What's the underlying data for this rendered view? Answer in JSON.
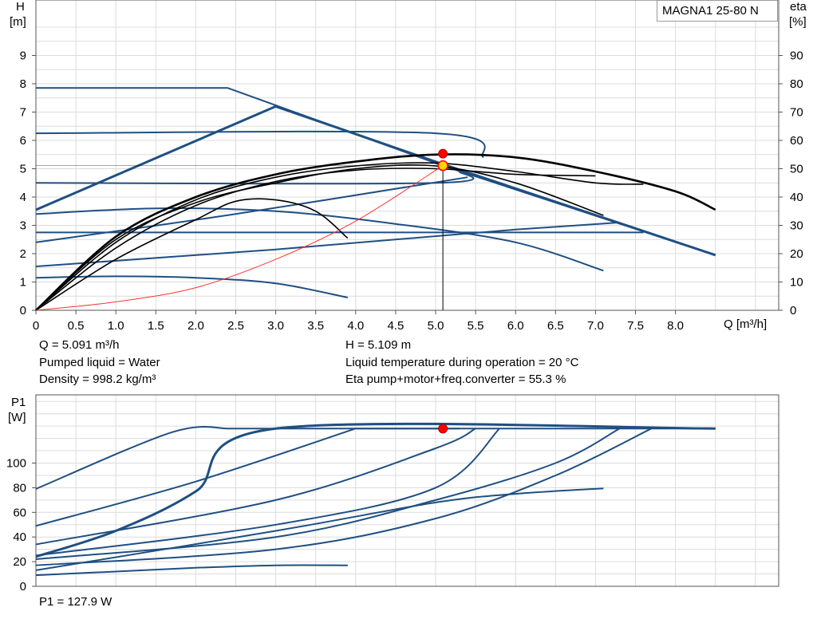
{
  "chart_data": [
    {
      "type": "line",
      "model_label": "MAGNA1 25-80 N",
      "left_axis": {
        "name": "H",
        "unit": "[m]",
        "ylim": [
          0,
          10
        ],
        "ticks": [
          0,
          1,
          2,
          3,
          4,
          5,
          6,
          7,
          8,
          9
        ]
      },
      "right_axis": {
        "name": "eta",
        "unit": "[%]",
        "ylim": [
          0,
          100
        ],
        "ticks": [
          0,
          10,
          20,
          30,
          40,
          50,
          60,
          70,
          80,
          90
        ]
      },
      "x_axis": {
        "label": "Q [m³/h]",
        "xlim": [
          0,
          9.3
        ],
        "ticks": [
          0,
          0.5,
          1.0,
          1.5,
          2.0,
          2.5,
          3.0,
          3.5,
          4.0,
          4.5,
          5.0,
          5.5,
          6.0,
          6.5,
          7.0,
          7.5,
          8.0
        ],
        "tick_labels": [
          "0",
          "0.5",
          "1.0",
          "1.5",
          "2.0",
          "2.5",
          "3.0",
          "3.5",
          "4.0",
          "4.5",
          "5.0",
          "5.5",
          "6.0",
          "6.5",
          "7.0",
          "7.5",
          "8.0"
        ]
      },
      "grid": true,
      "colors": {
        "curve": "#1f4f82",
        "efficiency": "#000000",
        "system": "#ff3333",
        "duty_point": "#ff0000",
        "duty_point_fill": "#ffd400"
      },
      "qh_curves": [
        {
          "points": [
            [
              0,
              7.85
            ],
            [
              2.4,
              7.85
            ],
            [
              5.1,
              5.1
            ],
            [
              8.5,
              1.95
            ]
          ],
          "bold": false
        },
        {
          "points": [
            [
              0,
              3.55
            ],
            [
              3.0,
              7.2
            ],
            [
              5.1,
              5.15
            ],
            [
              8.5,
              1.95
            ]
          ],
          "bold": true
        },
        {
          "points": [
            [
              0,
              6.25
            ],
            [
              5.0,
              6.25
            ],
            [
              5.6,
              5.4
            ]
          ],
          "bold": false
        },
        {
          "points": [
            [
              0,
              4.5
            ],
            [
              5.0,
              4.5
            ],
            [
              5.3,
              4.9
            ]
          ],
          "bold": false
        },
        {
          "points": [
            [
              0,
              2.75
            ],
            [
              7.6,
              2.75
            ]
          ],
          "bold": false
        },
        {
          "points": [
            [
              0,
              3.4
            ],
            [
              1.5,
              3.6
            ],
            [
              3.0,
              3.5
            ],
            [
              4.5,
              3.05
            ],
            [
              6.0,
              2.4
            ],
            [
              7.1,
              1.4
            ]
          ],
          "bold": false
        },
        {
          "points": [
            [
              0,
              2.4
            ],
            [
              2.5,
              3.4
            ],
            [
              5.4,
              4.7
            ]
          ],
          "bold": false
        },
        {
          "points": [
            [
              0,
              1.55
            ],
            [
              3.0,
              2.15
            ],
            [
              6.0,
              2.85
            ],
            [
              7.3,
              3.1
            ]
          ],
          "bold": false
        },
        {
          "points": [
            [
              0,
              1.15
            ],
            [
              1.0,
              1.2
            ],
            [
              2.0,
              1.15
            ],
            [
              3.0,
              0.95
            ],
            [
              3.9,
              0.45
            ]
          ],
          "bold": false
        }
      ],
      "eta_curves": [
        {
          "points": [
            [
              0,
              0
            ],
            [
              1.0,
              26
            ],
            [
              2.0,
              40
            ],
            [
              3.0,
              48
            ],
            [
              4.0,
              52.5
            ],
            [
              5.0,
              55
            ],
            [
              6.0,
              54
            ],
            [
              7.0,
              49
            ],
            [
              8.0,
              42
            ],
            [
              8.5,
              35.5
            ]
          ],
          "bold": true
        },
        {
          "points": [
            [
              0,
              0
            ],
            [
              1.0,
              24
            ],
            [
              2.0,
              39
            ],
            [
              3.0,
              47
            ],
            [
              4.0,
              51
            ],
            [
              5.0,
              52
            ],
            [
              6.0,
              49
            ],
            [
              7.0,
              45
            ],
            [
              7.6,
              44.5
            ]
          ],
          "bold": false
        },
        {
          "points": [
            [
              0,
              0
            ],
            [
              1.0,
              22
            ],
            [
              2.0,
              37
            ],
            [
              3.0,
              45.5
            ],
            [
              4.0,
              49.5
            ],
            [
              5.0,
              50
            ],
            [
              6.0,
              48
            ],
            [
              7.0,
              47.5
            ]
          ],
          "bold": false
        },
        {
          "points": [
            [
              0,
              0
            ],
            [
              1.0,
              25
            ],
            [
              2.0,
              38
            ],
            [
              3.0,
              45
            ],
            [
              4.0,
              50
            ],
            [
              5.0,
              51
            ],
            [
              6.0,
              45
            ],
            [
              7.1,
              33.5
            ]
          ],
          "bold": false
        },
        {
          "points": [
            [
              0,
              0
            ],
            [
              1.0,
              18
            ],
            [
              2.0,
              32
            ],
            [
              2.5,
              38.5
            ],
            [
              3.0,
              39
            ],
            [
              3.5,
              35
            ],
            [
              3.9,
              25.5
            ]
          ],
          "bold": false
        }
      ],
      "system_curve": {
        "points": [
          [
            0,
            0
          ],
          [
            1.0,
            3
          ],
          [
            2.0,
            8
          ],
          [
            3.0,
            18
          ],
          [
            4.0,
            31.5
          ],
          [
            5.091,
            51.09
          ]
        ]
      },
      "duty_point": {
        "Q": 5.091,
        "H": 5.109,
        "eta": 55.3
      }
    },
    {
      "type": "line",
      "left_axis": {
        "name": "P1",
        "unit": "[W]",
        "ylim": [
          0,
          130
        ],
        "ticks": [
          0,
          20,
          40,
          60,
          80,
          100
        ],
        "tick_labels": [
          "0",
          "20",
          "40",
          "60",
          "80",
          "100"
        ]
      },
      "xlim": [
        0,
        9.3
      ],
      "grid": true,
      "p1_curves": [
        {
          "points": [
            [
              0,
              79
            ],
            [
              1.7,
              125
            ],
            [
              2.4,
              128
            ],
            [
              8.5,
              128
            ]
          ],
          "bold": false
        },
        {
          "points": [
            [
              0,
              24
            ],
            [
              1.0,
              45
            ],
            [
              2.0,
              77
            ],
            [
              3.0,
              128
            ],
            [
              8.5,
              128
            ]
          ],
          "bold": true
        },
        {
          "points": [
            [
              0,
              49
            ],
            [
              2.0,
              85
            ],
            [
              4.0,
              128
            ],
            [
              5.3,
              128
            ]
          ],
          "bold": false
        },
        {
          "points": [
            [
              0,
              34
            ],
            [
              3.0,
              70
            ],
            [
              5.0,
              112
            ],
            [
              5.5,
              128
            ]
          ],
          "bold": false
        },
        {
          "points": [
            [
              0,
              25
            ],
            [
              3.0,
              50
            ],
            [
              5.0,
              80
            ],
            [
              5.8,
              128
            ]
          ],
          "bold": false
        },
        {
          "points": [
            [
              0,
              22
            ],
            [
              3.0,
              40
            ],
            [
              5.0,
              70
            ],
            [
              6.5,
              100
            ],
            [
              7.3,
              128
            ]
          ],
          "bold": false
        },
        {
          "points": [
            [
              0,
              17
            ],
            [
              3.0,
              30
            ],
            [
              5.0,
              55
            ],
            [
              6.5,
              90
            ],
            [
              7.7,
              128
            ]
          ],
          "bold": false
        },
        {
          "points": [
            [
              0,
              13
            ],
            [
              3.0,
              45
            ],
            [
              5.0,
              68
            ],
            [
              6.0,
              75
            ],
            [
              7.1,
              79.5
            ]
          ],
          "bold": false
        },
        {
          "points": [
            [
              0,
              9
            ],
            [
              1.0,
              12
            ],
            [
              2.0,
              15
            ],
            [
              3.0,
              17
            ],
            [
              3.9,
              17
            ]
          ],
          "bold": false
        }
      ],
      "duty_point": {
        "Q": 5.091,
        "P1": 127.9
      }
    }
  ],
  "readout": {
    "q": "Q = 5.091 m³/h",
    "liquid": "Pumped liquid = Water",
    "density": "Density = 998.2 kg/m³",
    "h": "H = 5.109 m",
    "temperature": "Liquid temperature during operation = 20 °C",
    "eta": "Eta pump+motor+freq.converter = 55.3 %",
    "p1": "P1 = 127.9 W"
  }
}
